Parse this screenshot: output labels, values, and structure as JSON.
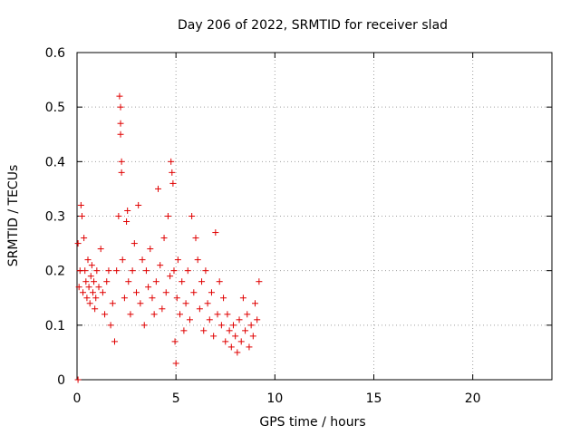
{
  "chart_data": {
    "type": "scatter",
    "title": "Day 206 of 2022, SRMTID for receiver slad",
    "xlabel": "GPS time / hours",
    "ylabel": "SRMTID / TECUs",
    "xlim": [
      0,
      24
    ],
    "ylim": [
      0,
      0.6
    ],
    "xticks": [
      0,
      5,
      10,
      15,
      20
    ],
    "xtick_labels": [
      "0",
      "5",
      "10",
      "15",
      "20"
    ],
    "yticks": [
      0,
      0.1,
      0.2,
      0.3,
      0.4,
      0.5,
      0.6
    ],
    "ytick_labels": [
      "0",
      "0.1",
      "0.2",
      "0.3",
      "0.4",
      "0.5",
      "0.6"
    ],
    "grid": true,
    "marker": "+",
    "color": "#e00000",
    "series": [
      {
        "name": "slad",
        "x": [
          0.05,
          0.05,
          0.1,
          0.15,
          0.2,
          0.25,
          0.3,
          0.35,
          0.4,
          0.45,
          0.5,
          0.55,
          0.6,
          0.65,
          0.7,
          0.75,
          0.8,
          0.85,
          0.9,
          0.95,
          1.0,
          1.1,
          1.2,
          1.3,
          1.4,
          1.5,
          1.6,
          1.7,
          1.8,
          1.9,
          2.0,
          2.1,
          2.15,
          2.2,
          2.2,
          2.2,
          2.25,
          2.25,
          2.3,
          2.4,
          2.5,
          2.55,
          2.6,
          2.7,
          2.8,
          2.9,
          3.0,
          3.1,
          3.2,
          3.3,
          3.4,
          3.5,
          3.6,
          3.7,
          3.8,
          3.9,
          4.0,
          4.1,
          4.2,
          4.3,
          4.4,
          4.5,
          4.6,
          4.7,
          4.75,
          4.8,
          4.85,
          4.9,
          4.95,
          5.0,
          5.05,
          5.1,
          5.2,
          5.3,
          5.4,
          5.5,
          5.6,
          5.7,
          5.8,
          5.9,
          6.0,
          6.1,
          6.2,
          6.3,
          6.4,
          6.5,
          6.6,
          6.7,
          6.8,
          6.9,
          7.0,
          7.1,
          7.2,
          7.3,
          7.4,
          7.5,
          7.6,
          7.7,
          7.8,
          7.9,
          8.0,
          8.1,
          8.2,
          8.3,
          8.4,
          8.5,
          8.6,
          8.7,
          8.8,
          8.9,
          9.0,
          9.1,
          9.2
        ],
        "y": [
          0.0,
          0.25,
          0.17,
          0.2,
          0.32,
          0.3,
          0.16,
          0.26,
          0.2,
          0.18,
          0.15,
          0.22,
          0.17,
          0.14,
          0.19,
          0.21,
          0.16,
          0.18,
          0.13,
          0.15,
          0.2,
          0.17,
          0.24,
          0.16,
          0.12,
          0.18,
          0.2,
          0.1,
          0.14,
          0.07,
          0.2,
          0.3,
          0.52,
          0.5,
          0.47,
          0.45,
          0.4,
          0.38,
          0.22,
          0.15,
          0.29,
          0.31,
          0.18,
          0.12,
          0.2,
          0.25,
          0.16,
          0.32,
          0.14,
          0.22,
          0.1,
          0.2,
          0.17,
          0.24,
          0.15,
          0.12,
          0.18,
          0.35,
          0.21,
          0.13,
          0.26,
          0.16,
          0.3,
          0.19,
          0.4,
          0.38,
          0.36,
          0.2,
          0.07,
          0.03,
          0.15,
          0.22,
          0.12,
          0.18,
          0.09,
          0.14,
          0.2,
          0.11,
          0.3,
          0.16,
          0.26,
          0.22,
          0.13,
          0.18,
          0.09,
          0.2,
          0.14,
          0.11,
          0.16,
          0.08,
          0.27,
          0.12,
          0.18,
          0.1,
          0.15,
          0.07,
          0.12,
          0.09,
          0.06,
          0.1,
          0.08,
          0.05,
          0.11,
          0.07,
          0.15,
          0.09,
          0.12,
          0.06,
          0.1,
          0.08,
          0.14,
          0.11,
          0.18
        ]
      }
    ]
  }
}
